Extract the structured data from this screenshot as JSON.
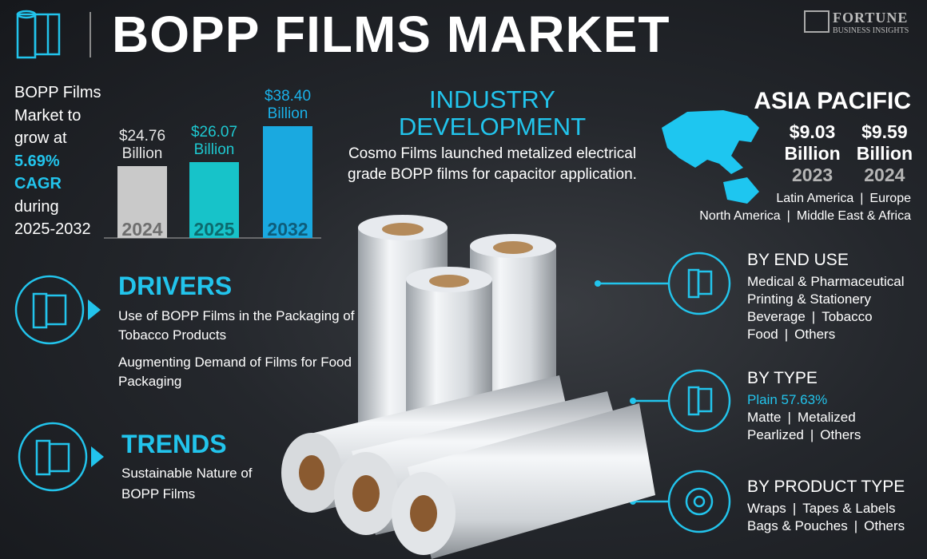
{
  "header": {
    "title": "BOPP FILMS MARKET",
    "logo": {
      "name": "FORTUNE",
      "tagline": "BUSINESS INSIGHTS"
    }
  },
  "growth": {
    "lines": [
      "BOPP Films",
      "Market to",
      "grow at"
    ],
    "cagr": [
      "5.69%",
      "CAGR"
    ],
    "period": [
      "during",
      "2025-2032"
    ]
  },
  "chart_data": {
    "type": "bar",
    "categories": [
      "2024",
      "2025",
      "2032"
    ],
    "values": [
      24.76,
      26.07,
      38.4
    ],
    "value_labels": [
      "$24.76 Billion",
      "$26.07 Billion",
      "$38.40 Billion"
    ],
    "colors": [
      "#c9c9c9",
      "#17c3c9",
      "#1aa9e0"
    ],
    "label_colors": [
      "#e8e8e8",
      "#1ec8d0",
      "#1ab0e8"
    ]
  },
  "industry_development": {
    "title": "INDUSTRY DEVELOPMENT",
    "text": "Cosmo Films launched metalized electrical grade BOPP films for capacitor application."
  },
  "region": {
    "title": "ASIA PACIFIC",
    "values": [
      {
        "amount": "$9.03",
        "unit": "Billion",
        "year": "2023"
      },
      {
        "amount": "$9.59",
        "unit": "Billion",
        "year": "2024"
      }
    ],
    "others": [
      [
        "Latin America",
        "Europe"
      ],
      [
        "North America",
        "Middle East & Africa"
      ]
    ]
  },
  "drivers": {
    "title": "DRIVERS",
    "items": [
      "Use of BOPP Films in the Packaging of Tobacco Products",
      "Augmenting Demand of Films for Food Packaging"
    ]
  },
  "trends": {
    "title": "TRENDS",
    "items": [
      "Sustainable Nature of BOPP Films"
    ]
  },
  "segments": [
    {
      "title": "BY END USE",
      "lines": [
        [
          "Medical & Pharmaceutical"
        ],
        [
          "Printing & Stationery"
        ],
        [
          "Beverage",
          "Tobacco"
        ],
        [
          "Food",
          "Others"
        ]
      ]
    },
    {
      "title": "BY TYPE",
      "highlight": "Plain 57.63%",
      "lines": [
        [
          "Matte",
          "Metalized"
        ],
        [
          "Pearlized",
          "Others"
        ]
      ]
    },
    {
      "title": "BY PRODUCT TYPE",
      "lines": [
        [
          "Wraps",
          "Tapes & Labels"
        ],
        [
          "Bags & Pouches",
          "Others"
        ]
      ]
    }
  ]
}
